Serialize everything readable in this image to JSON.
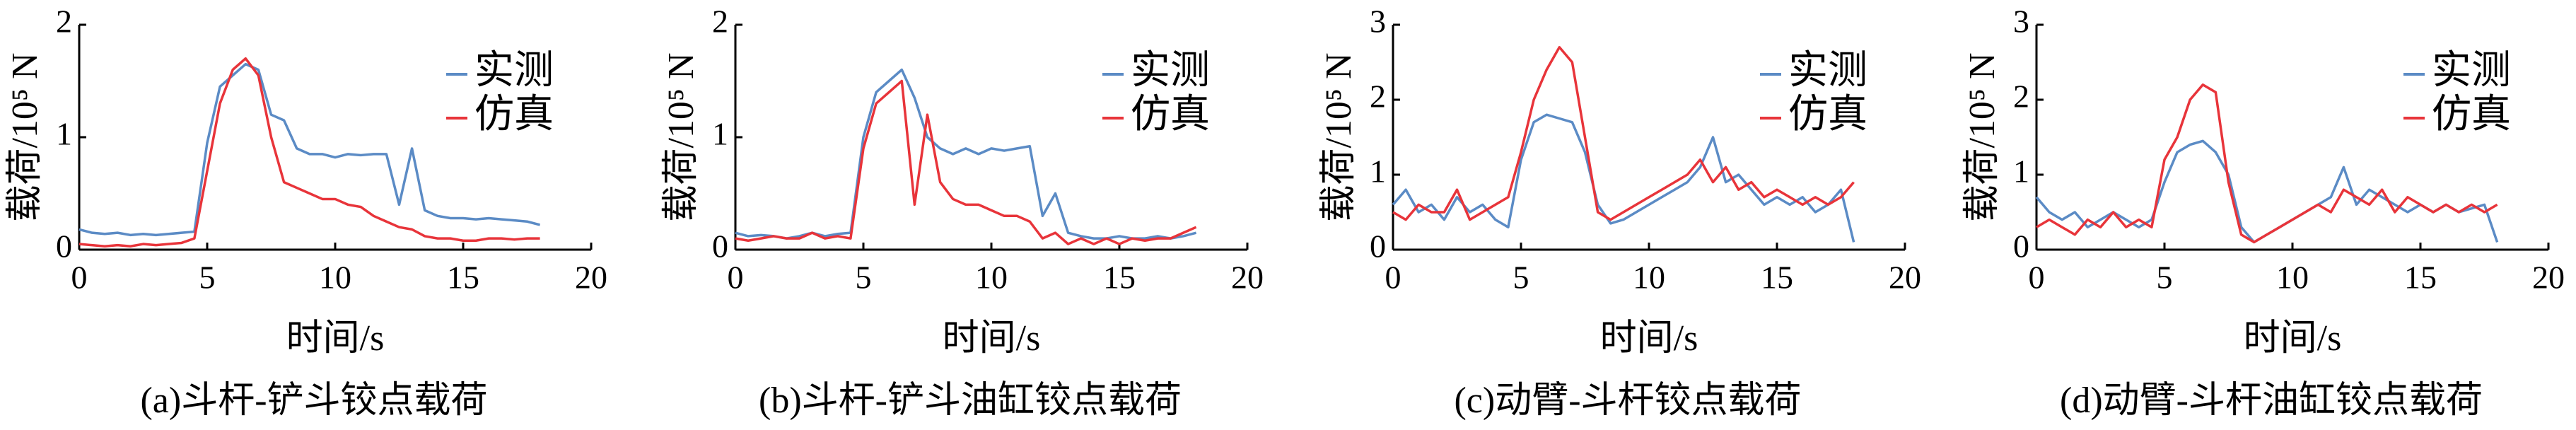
{
  "chart_data": [
    {
      "type": "line",
      "title": "(a)斗杆-铲斗铰点载荷",
      "xlabel": "时间/s",
      "ylabel": "载荷/10⁵ N",
      "x": [
        0,
        0.5,
        1,
        1.5,
        2,
        2.5,
        3,
        3.5,
        4,
        4.5,
        5,
        5.5,
        6,
        6.5,
        7,
        7.5,
        8,
        8.5,
        9,
        9.5,
        10,
        10.5,
        11,
        11.5,
        12,
        12.5,
        13,
        13.5,
        14,
        14.5,
        15,
        15.5,
        16,
        16.5,
        17,
        17.5,
        18
      ],
      "series": [
        {
          "name": "实测",
          "color": "#5b8bc5",
          "values": [
            0.18,
            0.15,
            0.14,
            0.15,
            0.13,
            0.14,
            0.13,
            0.14,
            0.15,
            0.16,
            0.95,
            1.45,
            1.55,
            1.65,
            1.6,
            1.2,
            1.15,
            0.9,
            0.85,
            0.85,
            0.82,
            0.85,
            0.84,
            0.85,
            0.85,
            0.4,
            0.9,
            0.35,
            0.3,
            0.28,
            0.28,
            0.27,
            0.28,
            0.27,
            0.26,
            0.25,
            0.22
          ]
        },
        {
          "name": "仿真",
          "color": "#e8343a",
          "values": [
            0.05,
            0.04,
            0.03,
            0.04,
            0.03,
            0.05,
            0.04,
            0.05,
            0.06,
            0.1,
            0.7,
            1.3,
            1.6,
            1.7,
            1.55,
            1.0,
            0.6,
            0.55,
            0.5,
            0.45,
            0.45,
            0.4,
            0.38,
            0.3,
            0.25,
            0.2,
            0.18,
            0.12,
            0.1,
            0.1,
            0.08,
            0.08,
            0.1,
            0.1,
            0.09,
            0.1,
            0.1
          ]
        }
      ],
      "xlim": [
        0,
        20
      ],
      "xticks": [
        0,
        5,
        10,
        15,
        20
      ],
      "ylim": [
        0,
        2
      ],
      "yticks": [
        0,
        1,
        2
      ]
    },
    {
      "type": "line",
      "title": "(b)斗杆-铲斗油缸铰点载荷",
      "xlabel": "时间/s",
      "ylabel": "载荷/10⁵ N",
      "x": [
        0,
        0.5,
        1,
        1.5,
        2,
        2.5,
        3,
        3.5,
        4,
        4.5,
        5,
        5.5,
        6,
        6.5,
        7,
        7.5,
        8,
        8.5,
        9,
        9.5,
        10,
        10.5,
        11,
        11.5,
        12,
        12.5,
        13,
        13.5,
        14,
        14.5,
        15,
        15.5,
        16,
        16.5,
        17,
        17.5,
        18
      ],
      "series": [
        {
          "name": "实测",
          "color": "#5b8bc5",
          "values": [
            0.15,
            0.12,
            0.13,
            0.12,
            0.1,
            0.12,
            0.15,
            0.12,
            0.14,
            0.15,
            1.0,
            1.4,
            1.5,
            1.6,
            1.35,
            1.0,
            0.9,
            0.85,
            0.9,
            0.85,
            0.9,
            0.88,
            0.9,
            0.92,
            0.3,
            0.5,
            0.15,
            0.12,
            0.1,
            0.1,
            0.12,
            0.1,
            0.1,
            0.12,
            0.1,
            0.12,
            0.15
          ]
        },
        {
          "name": "仿真",
          "color": "#e8343a",
          "values": [
            0.1,
            0.08,
            0.1,
            0.12,
            0.1,
            0.1,
            0.15,
            0.1,
            0.12,
            0.1,
            0.9,
            1.3,
            1.4,
            1.5,
            0.4,
            1.2,
            0.6,
            0.45,
            0.4,
            0.4,
            0.35,
            0.3,
            0.3,
            0.25,
            0.1,
            0.15,
            0.05,
            0.1,
            0.05,
            0.1,
            0.05,
            0.1,
            0.08,
            0.1,
            0.1,
            0.15,
            0.2
          ]
        }
      ],
      "xlim": [
        0,
        20
      ],
      "xticks": [
        0,
        5,
        10,
        15,
        20
      ],
      "ylim": [
        0,
        2
      ],
      "yticks": [
        0,
        1,
        2
      ]
    },
    {
      "type": "line",
      "title": "(c)动臂-斗杆铰点载荷",
      "xlabel": "时间/s",
      "ylabel": "载荷/10⁵ N",
      "x": [
        0,
        0.5,
        1,
        1.5,
        2,
        2.5,
        3,
        3.5,
        4,
        4.5,
        5,
        5.5,
        6,
        6.5,
        7,
        7.5,
        8,
        8.5,
        9,
        9.5,
        10,
        10.5,
        11,
        11.5,
        12,
        12.5,
        13,
        13.5,
        14,
        14.5,
        15,
        15.5,
        16,
        16.5,
        17,
        17.5,
        18
      ],
      "series": [
        {
          "name": "实测",
          "color": "#5b8bc5",
          "values": [
            0.6,
            0.8,
            0.5,
            0.6,
            0.4,
            0.7,
            0.5,
            0.6,
            0.4,
            0.3,
            1.2,
            1.7,
            1.8,
            1.75,
            1.7,
            1.3,
            0.6,
            0.35,
            0.4,
            0.5,
            0.6,
            0.7,
            0.8,
            0.9,
            1.1,
            1.5,
            0.9,
            1.0,
            0.8,
            0.6,
            0.7,
            0.6,
            0.7,
            0.5,
            0.6,
            0.8,
            0.1
          ]
        },
        {
          "name": "仿真",
          "color": "#e8343a",
          "values": [
            0.5,
            0.4,
            0.6,
            0.5,
            0.5,
            0.8,
            0.4,
            0.5,
            0.6,
            0.7,
            1.3,
            2.0,
            2.4,
            2.7,
            2.5,
            1.5,
            0.5,
            0.4,
            0.5,
            0.6,
            0.7,
            0.8,
            0.9,
            1.0,
            1.2,
            0.9,
            1.1,
            0.8,
            0.9,
            0.7,
            0.8,
            0.7,
            0.6,
            0.7,
            0.6,
            0.7,
            0.9
          ]
        }
      ],
      "xlim": [
        0,
        20
      ],
      "xticks": [
        0,
        5,
        10,
        15,
        20
      ],
      "ylim": [
        0,
        3
      ],
      "yticks": [
        0,
        1,
        2,
        3
      ]
    },
    {
      "type": "line",
      "title": "(d)动臂-斗杆油缸铰点载荷",
      "xlabel": "时间/s",
      "ylabel": "载荷/10⁵ N",
      "x": [
        0,
        0.5,
        1,
        1.5,
        2,
        2.5,
        3,
        3.5,
        4,
        4.5,
        5,
        5.5,
        6,
        6.5,
        7,
        7.5,
        8,
        8.5,
        9,
        9.5,
        10,
        10.5,
        11,
        11.5,
        12,
        12.5,
        13,
        13.5,
        14,
        14.5,
        15,
        15.5,
        16,
        16.5,
        17,
        17.5,
        18
      ],
      "series": [
        {
          "name": "实测",
          "color": "#5b8bc5",
          "values": [
            0.7,
            0.5,
            0.4,
            0.5,
            0.3,
            0.4,
            0.5,
            0.4,
            0.3,
            0.4,
            0.9,
            1.3,
            1.4,
            1.45,
            1.3,
            1.0,
            0.3,
            0.1,
            0.2,
            0.3,
            0.4,
            0.5,
            0.6,
            0.7,
            1.1,
            0.6,
            0.8,
            0.7,
            0.6,
            0.5,
            0.6,
            0.5,
            0.6,
            0.5,
            0.55,
            0.6,
            0.1
          ]
        },
        {
          "name": "仿真",
          "color": "#e8343a",
          "values": [
            0.3,
            0.4,
            0.3,
            0.2,
            0.4,
            0.3,
            0.5,
            0.3,
            0.4,
            0.3,
            1.2,
            1.5,
            2.0,
            2.2,
            2.1,
            0.9,
            0.2,
            0.1,
            0.2,
            0.3,
            0.4,
            0.5,
            0.6,
            0.5,
            0.8,
            0.7,
            0.6,
            0.8,
            0.5,
            0.7,
            0.6,
            0.5,
            0.6,
            0.5,
            0.6,
            0.5,
            0.6
          ]
        }
      ],
      "xlim": [
        0,
        20
      ],
      "xticks": [
        0,
        5,
        10,
        15,
        20
      ],
      "ylim": [
        0,
        3
      ],
      "yticks": [
        0,
        1,
        2,
        3
      ]
    }
  ]
}
